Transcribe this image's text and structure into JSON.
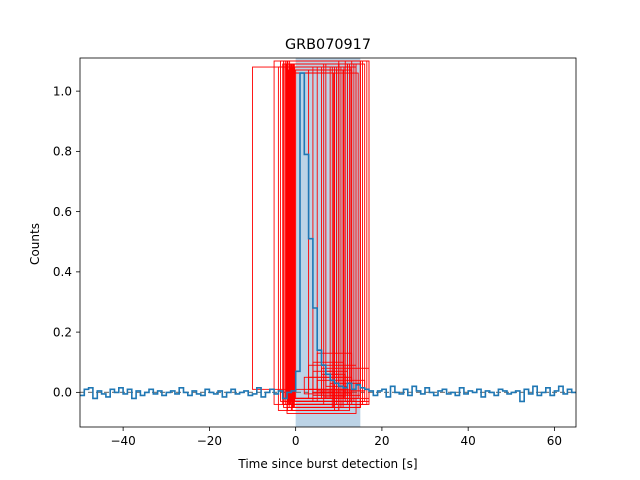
{
  "chart_data": {
    "type": "line",
    "title": "GRB070917",
    "xlabel": "Time since burst detection [s]",
    "ylabel": "Counts",
    "xlim": [
      -50,
      65
    ],
    "ylim": [
      -0.115,
      1.11
    ],
    "x_ticks": [
      -40,
      -20,
      0,
      20,
      40,
      60
    ],
    "y_ticks": [
      0.0,
      0.2,
      0.4,
      0.6,
      0.8,
      1.0
    ],
    "x_tick_labels": [
      "−40",
      "−20",
      "0",
      "20",
      "40",
      "60"
    ],
    "y_tick_labels": [
      "0.0",
      "0.2",
      "0.4",
      "0.6",
      "0.8",
      "1.0"
    ],
    "grid": false,
    "series": [
      {
        "style": "step",
        "color": "#1f77b4",
        "x": [
          -50,
          -49,
          -48,
          -47,
          -46,
          -45,
          -44,
          -43,
          -42,
          -41,
          -40,
          -39,
          -38,
          -37,
          -36,
          -35,
          -34,
          -33,
          -32,
          -31,
          -30,
          -29,
          -28,
          -27,
          -26,
          -25,
          -24,
          -23,
          -22,
          -21,
          -20,
          -19,
          -18,
          -17,
          -16,
          -15,
          -14,
          -13,
          -12,
          -11,
          -10,
          -9,
          -8,
          -7,
          -6,
          -5,
          -4,
          -3,
          -2,
          -1,
          0,
          1,
          2,
          3,
          4,
          5,
          6,
          7,
          8,
          9,
          10,
          11,
          12,
          13,
          14,
          15,
          16,
          17,
          18,
          19,
          20,
          21,
          22,
          23,
          24,
          25,
          26,
          27,
          28,
          29,
          30,
          31,
          32,
          33,
          34,
          35,
          36,
          37,
          38,
          39,
          40,
          41,
          42,
          43,
          44,
          45,
          46,
          47,
          48,
          49,
          50,
          51,
          52,
          53,
          54,
          55,
          56,
          57,
          58,
          59,
          60,
          61,
          62,
          63,
          64,
          65
        ],
        "y": [
          -0.01,
          0.01,
          0.015,
          -0.02,
          0.005,
          -0.005,
          -0.015,
          0.01,
          0.0,
          0.015,
          -0.005,
          0.01,
          -0.02,
          0.005,
          -0.01,
          0.0,
          0.01,
          -0.005,
          0.005,
          -0.01,
          0.0,
          0.005,
          -0.005,
          0.015,
          0.0,
          -0.01,
          0.005,
          -0.005,
          -0.01,
          0.01,
          0.0,
          -0.005,
          0.005,
          -0.015,
          0.0,
          0.01,
          -0.005,
          0.0,
          0.005,
          -0.01,
          -0.005,
          0.015,
          -0.015,
          0.0,
          0.01,
          -0.005,
          0.005,
          -0.02,
          0.0,
          0.005,
          0.07,
          1.06,
          0.79,
          0.51,
          0.28,
          0.14,
          0.09,
          0.06,
          0.04,
          0.03,
          0.02,
          0.015,
          0.03,
          0.01,
          0.025,
          0.015,
          0.01,
          0.005,
          -0.01,
          0.005,
          0.01,
          -0.015,
          0.02,
          0.0,
          -0.005,
          0.01,
          -0.01,
          0.02,
          0.005,
          -0.005,
          0.015,
          0.0,
          -0.01,
          0.005,
          0.01,
          -0.005,
          0.0,
          -0.01,
          0.015,
          -0.005,
          0.005,
          0.0,
          0.01,
          -0.015,
          0.005,
          0.0,
          -0.01,
          0.01,
          0.005,
          -0.005,
          0.0,
          0.005,
          -0.03,
          0.01,
          -0.005,
          0.02,
          -0.01,
          0.0,
          0.015,
          -0.01,
          0.005,
          0.02,
          -0.005,
          0.01,
          0.0,
          0.005
        ]
      }
    ],
    "shaded_band": {
      "x0": 0,
      "x1": 15,
      "color": "#a6c4de"
    },
    "dashed_baseline": {
      "y": 0.0,
      "color": "#7f7f7f"
    },
    "red_boxes": {
      "color": "#ff0000",
      "windows": [
        [
          -10,
          9.5,
          0.01,
          1.08
        ],
        [
          -5,
          17,
          -0.04,
          1.1
        ],
        [
          -4,
          9,
          -0.06,
          1.08
        ],
        [
          -3,
          12,
          -0.04,
          1.09
        ],
        [
          -2,
          15,
          -0.05,
          1.1
        ],
        [
          -1.5,
          10,
          -0.03,
          1.09
        ],
        [
          -1,
          14,
          -0.03,
          1.08
        ],
        [
          -0.5,
          11,
          -0.05,
          1.07
        ],
        [
          -2.5,
          16,
          -0.03,
          1.09
        ],
        [
          -1.8,
          13,
          -0.04,
          1.1
        ],
        [
          -1.2,
          8,
          -0.02,
          1.08
        ],
        [
          -0.8,
          12.5,
          -0.06,
          1.09
        ],
        [
          -1,
          14.5,
          -0.02,
          1.06
        ],
        [
          -2,
          11.5,
          -0.03,
          1.1
        ],
        [
          -0.6,
          10.5,
          -0.05,
          1.08
        ],
        [
          -1.6,
          9.5,
          -0.04,
          1.07
        ],
        [
          -0.9,
          13.5,
          -0.03,
          1.09
        ],
        [
          -1.4,
          15.5,
          -0.04,
          1.1
        ],
        [
          -0.7,
          8.5,
          -0.05,
          1.08
        ],
        [
          -2.2,
          12,
          -0.02,
          1.09
        ],
        [
          -1.1,
          11,
          -0.04,
          1.07
        ],
        [
          -0.4,
          14,
          -0.03,
          1.09
        ],
        [
          -1.9,
          10,
          -0.06,
          1.1
        ],
        [
          -1.3,
          12.8,
          -0.03,
          1.08
        ],
        [
          -0.5,
          9,
          -0.04,
          1.06
        ],
        [
          -3.5,
          17,
          -0.03,
          1.1
        ],
        [
          -1,
          6,
          -0.02,
          1.08
        ],
        [
          -0.3,
          15,
          -0.05,
          1.09
        ],
        [
          -1.7,
          13,
          -0.03,
          1.07
        ],
        [
          -2.4,
          16.5,
          -0.04,
          1.1
        ],
        [
          -0.2,
          5,
          -0.03,
          1.08
        ],
        [
          -0.6,
          7,
          -0.02,
          1.09
        ],
        [
          -1.5,
          8.8,
          -0.05,
          1.06
        ],
        [
          -0.8,
          4,
          -0.03,
          1.08
        ],
        [
          -1.2,
          6.5,
          -0.04,
          1.09
        ],
        [
          0,
          3,
          -0.02,
          1.07
        ],
        [
          -2,
          14,
          -0.07,
          1.08
        ],
        [
          -1,
          10,
          -0.06,
          1.09
        ],
        [
          -2.8,
          15,
          -0.05,
          1.1
        ],
        [
          -1.3,
          11.2,
          -0.02,
          1.08
        ],
        [
          5,
          13,
          0.0,
          0.13
        ],
        [
          6,
          17,
          -0.02,
          0.08
        ],
        [
          4,
          11,
          -0.01,
          0.1
        ],
        [
          7,
          12,
          0.02,
          0.07
        ],
        [
          3,
          14,
          0.01,
          0.09
        ],
        [
          6,
          10,
          0.0,
          0.06
        ],
        [
          2,
          13,
          -0.005,
          0.05
        ],
        [
          5,
          16,
          0.005,
          0.04
        ],
        [
          4,
          9,
          0.0,
          0.07
        ],
        [
          8,
          15,
          -0.01,
          0.03
        ],
        [
          3,
          12,
          0.01,
          0.05
        ],
        [
          6.5,
          11.5,
          -0.015,
          0.06
        ]
      ]
    }
  }
}
